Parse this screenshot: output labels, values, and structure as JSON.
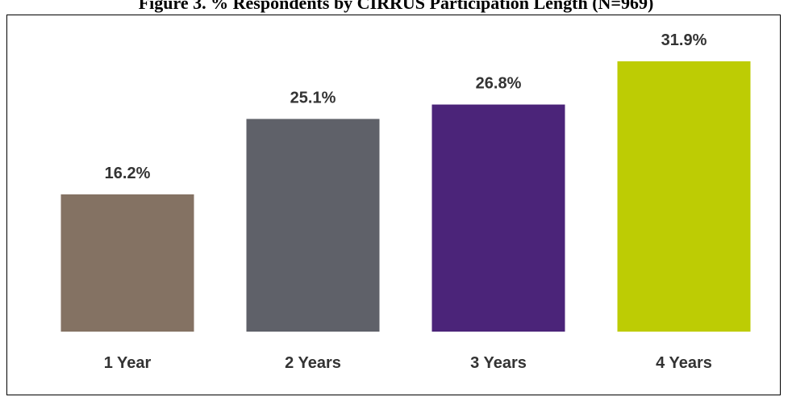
{
  "chart_data": {
    "type": "bar",
    "title": "Figure 3. % Respondents by CIRRUS Participation Length (N=969)",
    "categories": [
      "1 Year",
      "2 Years",
      "3 Years",
      "4 Years"
    ],
    "values": [
      16.2,
      25.1,
      26.8,
      31.9
    ],
    "value_labels": [
      "16.2%",
      "25.1%",
      "26.8%",
      "31.9%"
    ],
    "colors": [
      "#847263",
      "#5f6169",
      "#4b2479",
      "#bdcc04"
    ],
    "xlabel": "",
    "ylabel": "",
    "ylim": [
      0,
      31.9
    ],
    "grid": false,
    "legend": "none"
  }
}
